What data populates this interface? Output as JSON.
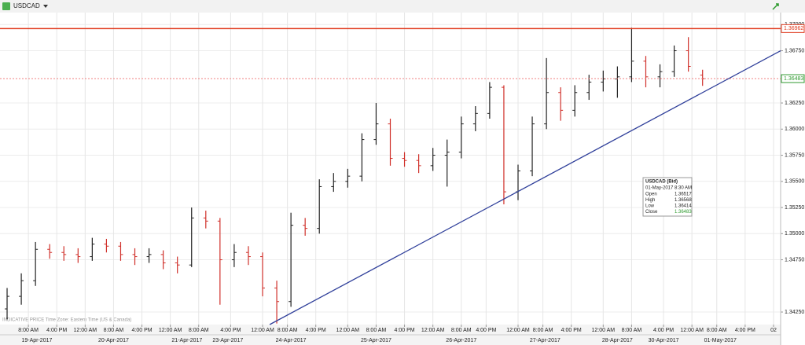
{
  "chart_data": {
    "type": "ohlc",
    "title": "USDCAD",
    "footnote": "INDICATIVE PRICE   Time Zone: Eastern Time (US & Canada)",
    "x": [
      2,
      6,
      10,
      14,
      18,
      22,
      26,
      30,
      34,
      38,
      42,
      46,
      50,
      54,
      58,
      62,
      66,
      70,
      74,
      78,
      82,
      86,
      90,
      94,
      98,
      102,
      106,
      110,
      114,
      118,
      122,
      126,
      130,
      134,
      138,
      142,
      146,
      150,
      154,
      158,
      162,
      166,
      170,
      174,
      178,
      182,
      186,
      190,
      194,
      198
    ],
    "ohlc": [
      [
        1.3428,
        1.3448,
        1.3418,
        1.344
      ],
      [
        1.344,
        1.3462,
        1.3432,
        1.3455
      ],
      [
        1.3455,
        1.3492,
        1.345,
        1.3485
      ],
      [
        1.3485,
        1.349,
        1.3476,
        1.3482
      ],
      [
        1.3482,
        1.3488,
        1.3474,
        1.348
      ],
      [
        1.348,
        1.3486,
        1.3472,
        1.3478
      ],
      [
        1.3478,
        1.3496,
        1.3474,
        1.349
      ],
      [
        1.349,
        1.3495,
        1.3482,
        1.3488
      ],
      [
        1.3488,
        1.3492,
        1.3474,
        1.348
      ],
      [
        1.348,
        1.3486,
        1.347,
        1.3478
      ],
      [
        1.3478,
        1.3486,
        1.3472,
        1.348
      ],
      [
        1.348,
        1.3484,
        1.3466,
        1.3472
      ],
      [
        1.3472,
        1.3478,
        1.3462,
        1.347
      ],
      [
        1.347,
        1.3525,
        1.3468,
        1.3515
      ],
      [
        1.3515,
        1.3522,
        1.3505,
        1.3512
      ],
      [
        1.3512,
        1.3515,
        1.3432,
        1.3475
      ],
      [
        1.3475,
        1.349,
        1.3468,
        1.3482
      ],
      [
        1.3482,
        1.3488,
        1.347,
        1.3478
      ],
      [
        1.3478,
        1.3482,
        1.344,
        1.3448
      ],
      [
        1.3448,
        1.3455,
        1.3414,
        1.3435
      ],
      [
        1.3435,
        1.352,
        1.343,
        1.3508
      ],
      [
        1.3508,
        1.3515,
        1.3498,
        1.3505
      ],
      [
        1.3505,
        1.3552,
        1.35,
        1.3545
      ],
      [
        1.3545,
        1.3558,
        1.354,
        1.355
      ],
      [
        1.355,
        1.3562,
        1.3544,
        1.3555
      ],
      [
        1.3555,
        1.3596,
        1.355,
        1.359
      ],
      [
        1.359,
        1.3625,
        1.3585,
        1.3605
      ],
      [
        1.3605,
        1.361,
        1.3565,
        1.3572
      ],
      [
        1.3572,
        1.3578,
        1.3564,
        1.357
      ],
      [
        1.357,
        1.3576,
        1.3558,
        1.3565
      ],
      [
        1.3565,
        1.3582,
        1.356,
        1.3575
      ],
      [
        1.3575,
        1.359,
        1.3545,
        1.3578
      ],
      [
        1.3578,
        1.3612,
        1.3572,
        1.3605
      ],
      [
        1.3605,
        1.3622,
        1.3598,
        1.3615
      ],
      [
        1.3615,
        1.3645,
        1.361,
        1.364
      ],
      [
        1.364,
        1.3642,
        1.3528,
        1.354
      ],
      [
        1.354,
        1.3566,
        1.3532,
        1.356
      ],
      [
        1.356,
        1.3612,
        1.3555,
        1.3605
      ],
      [
        1.3605,
        1.3668,
        1.36,
        1.3635
      ],
      [
        1.3635,
        1.364,
        1.3608,
        1.3618
      ],
      [
        1.3618,
        1.3642,
        1.3612,
        1.3635
      ],
      [
        1.3635,
        1.3652,
        1.3628,
        1.3645
      ],
      [
        1.3645,
        1.3656,
        1.3636,
        1.3648
      ],
      [
        1.3648,
        1.366,
        1.363,
        1.365
      ],
      [
        1.365,
        1.3697,
        1.3645,
        1.3665
      ],
      [
        1.3665,
        1.367,
        1.364,
        1.365
      ],
      [
        1.365,
        1.3662,
        1.364,
        1.3655
      ],
      [
        1.3655,
        1.368,
        1.365,
        1.3675
      ],
      [
        1.3675,
        1.3688,
        1.3655,
        1.366
      ],
      [
        1.36517,
        1.36568,
        1.36414,
        1.36483
      ]
    ],
    "up_color": "#222222",
    "down_color": "#d0302a",
    "xlim": [
      0,
      220
    ],
    "ylim": [
      1.3413,
      1.371
    ],
    "yticks": [
      {
        "value": 1.3425,
        "label": "1.34250"
      },
      {
        "value": 1.3475,
        "label": "1.34750"
      },
      {
        "value": 1.35,
        "label": "1.35000"
      },
      {
        "value": 1.3525,
        "label": "1.35250"
      },
      {
        "value": 1.355,
        "label": "1.35500"
      },
      {
        "value": 1.3575,
        "label": "1.35750"
      },
      {
        "value": 1.36,
        "label": "1.36000"
      },
      {
        "value": 1.3625,
        "label": "1.36250"
      },
      {
        "value": 1.3675,
        "label": "1.36750"
      },
      {
        "value": 1.37,
        "label": "1.37000"
      }
    ],
    "xticks": [
      {
        "value": 8,
        "label": "8:00 AM"
      },
      {
        "value": 16,
        "label": "4:00 PM"
      },
      {
        "value": 24,
        "label": "12:00 AM"
      },
      {
        "value": 32,
        "label": "8:00 AM"
      },
      {
        "value": 40,
        "label": "4:00 PM"
      },
      {
        "value": 48,
        "label": "12:00 AM"
      },
      {
        "value": 56,
        "label": "8:00 AM"
      },
      {
        "value": 65,
        "label": "4:00 PM"
      },
      {
        "value": 74,
        "label": "12:00 AM"
      },
      {
        "value": 81,
        "label": "8:00 AM"
      },
      {
        "value": 89,
        "label": "4:00 PM"
      },
      {
        "value": 98,
        "label": "12:00 AM"
      },
      {
        "value": 106,
        "label": "8:00 AM"
      },
      {
        "value": 114,
        "label": "4:00 PM"
      },
      {
        "value": 122,
        "label": "12:00 AM"
      },
      {
        "value": 130,
        "label": "8:00 AM"
      },
      {
        "value": 137,
        "label": "4:00 PM"
      },
      {
        "value": 146,
        "label": "12:00 AM"
      },
      {
        "value": 153,
        "label": "8:00 AM"
      },
      {
        "value": 161,
        "label": "4:00 PM"
      },
      {
        "value": 170,
        "label": "12:00 AM"
      },
      {
        "value": 178,
        "label": "8:00 AM"
      },
      {
        "value": 187,
        "label": "4:00 PM"
      },
      {
        "value": 195,
        "label": "12:00 AM"
      },
      {
        "value": 202,
        "label": "8:00 AM"
      },
      {
        "value": 210,
        "label": "4:00 PM"
      },
      {
        "value": 218,
        "label": "02"
      }
    ],
    "date_ticks": [
      {
        "value": 10.4,
        "label": "19-Apr-2017"
      },
      {
        "value": 32,
        "label": "20-Apr-2017"
      },
      {
        "value": 52.7,
        "label": "21-Apr-2017"
      },
      {
        "value": 64.2,
        "label": "23-Apr-2017"
      },
      {
        "value": 82,
        "label": "24-Apr-2017"
      },
      {
        "value": 106,
        "label": "25-Apr-2017"
      },
      {
        "value": 130,
        "label": "26-Apr-2017"
      },
      {
        "value": 153.6,
        "label": "27-Apr-2017"
      },
      {
        "value": 174,
        "label": "28-Apr-2017"
      },
      {
        "value": 187,
        "label": "30-Apr-2017"
      },
      {
        "value": 203,
        "label": "01-May-2017"
      }
    ],
    "levels": [
      {
        "value": 1.36962,
        "label": "1.36962",
        "color": "#e03a1e",
        "line_color": "#e03a1e",
        "dashed": false
      },
      {
        "value": 1.36483,
        "label": "1.36483",
        "color": "#2e9a2e",
        "line_color": "#f08080",
        "dashed": true
      }
    ],
    "trendline": {
      "x": [
        76,
        220
      ],
      "y": [
        1.3413,
        1.3675
      ],
      "color": "#2f3f9a"
    },
    "tooltip": {
      "title": "USDCAD (Bid)",
      "time": "01-May-2017 8:30 AM",
      "rows": [
        [
          "Open",
          "1.36517"
        ],
        [
          "High",
          "1.36568"
        ],
        [
          "Low",
          "1.36414"
        ],
        [
          "Close",
          "1.36483"
        ]
      ]
    },
    "grid": true
  }
}
